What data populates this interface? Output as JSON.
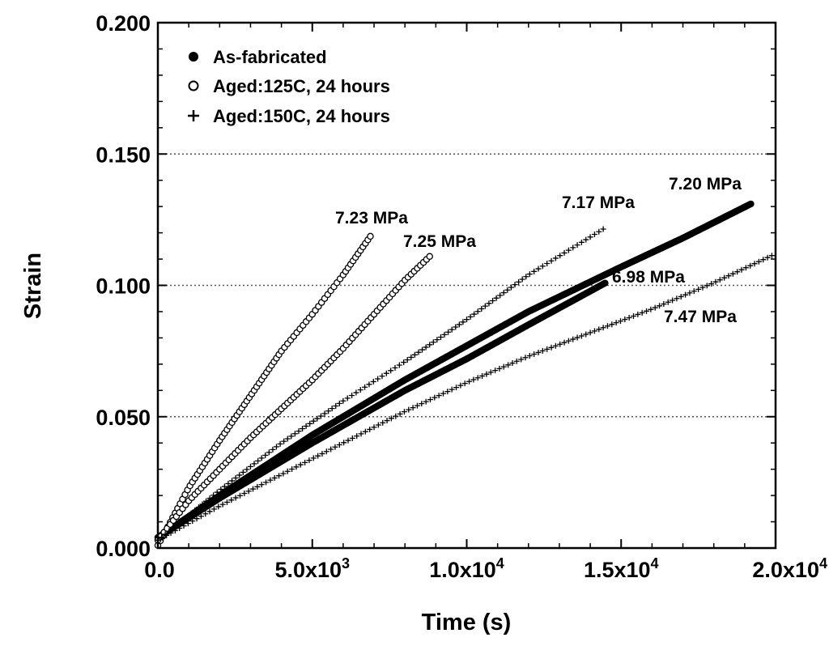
{
  "chart_data": {
    "type": "scatter",
    "xlabel": "Time  (s)",
    "ylabel": "Strain",
    "xlim": [
      0,
      20000
    ],
    "ylim": [
      0,
      0.2
    ],
    "x_ticks": [
      {
        "value": 0,
        "label": "0.0"
      },
      {
        "value": 5000,
        "label": "5.0x10",
        "exp": "3"
      },
      {
        "value": 10000,
        "label": "1.0x10",
        "exp": "4"
      },
      {
        "value": 15000,
        "label": "1.5x10",
        "exp": "4"
      },
      {
        "value": 20000,
        "label": "2.0x10",
        "exp": "4"
      }
    ],
    "y_ticks": [
      {
        "value": 0,
        "label": "0.000"
      },
      {
        "value": 0.05,
        "label": "0.050"
      },
      {
        "value": 0.1,
        "label": "0.100"
      },
      {
        "value": 0.15,
        "label": "0.150"
      },
      {
        "value": 0.2,
        "label": "0.200"
      }
    ],
    "gridlines_y": [
      0.05,
      0.1,
      0.15
    ],
    "legend_position": "top-left",
    "legend": [
      {
        "marker": "filled-circle",
        "label": "As-fabricated"
      },
      {
        "marker": "open-circle",
        "label": "Aged:125C, 24 hours"
      },
      {
        "marker": "plus",
        "label": "Aged:150C, 24 hours"
      }
    ],
    "series": [
      {
        "name": "As-fabricated",
        "stress_label": "7.20 MPa",
        "marker": "filled-circle",
        "t_end": 19200,
        "points": [
          [
            0,
            0.004
          ],
          [
            2000,
            0.02
          ],
          [
            5000,
            0.043
          ],
          [
            8000,
            0.064
          ],
          [
            10000,
            0.077
          ],
          [
            12000,
            0.09
          ],
          [
            15000,
            0.107
          ],
          [
            17000,
            0.118
          ],
          [
            19200,
            0.131
          ]
        ]
      },
      {
        "name": "As-fabricated",
        "stress_label": "6.98 MPa",
        "marker": "filled-circle",
        "t_end": 14500,
        "points": [
          [
            0,
            0.004
          ],
          [
            2000,
            0.019
          ],
          [
            5000,
            0.04
          ],
          [
            8000,
            0.06
          ],
          [
            10000,
            0.072
          ],
          [
            12000,
            0.085
          ],
          [
            14500,
            0.101
          ]
        ]
      },
      {
        "name": "Aged:125C, 24 hours",
        "stress_label": "7.23 MPa",
        "marker": "open-circle",
        "t_end": 6900,
        "points": [
          [
            0,
            0.001
          ],
          [
            1000,
            0.023
          ],
          [
            2000,
            0.041
          ],
          [
            3000,
            0.058
          ],
          [
            4000,
            0.075
          ],
          [
            5000,
            0.089
          ],
          [
            6000,
            0.104
          ],
          [
            6900,
            0.119
          ]
        ]
      },
      {
        "name": "Aged:125C, 24 hours",
        "stress_label": "7.25 MPa",
        "marker": "open-circle",
        "t_end": 8800,
        "points": [
          [
            0,
            0.003
          ],
          [
            1000,
            0.018
          ],
          [
            2000,
            0.03
          ],
          [
            3000,
            0.042
          ],
          [
            4000,
            0.053
          ],
          [
            5000,
            0.064
          ],
          [
            6000,
            0.076
          ],
          [
            7000,
            0.089
          ],
          [
            8000,
            0.102
          ],
          [
            8800,
            0.111
          ]
        ]
      },
      {
        "name": "Aged:150C, 24 hours",
        "stress_label": "7.17 MPa",
        "marker": "plus",
        "t_end": 14500,
        "points": [
          [
            0,
            0.003
          ],
          [
            2000,
            0.022
          ],
          [
            4000,
            0.04
          ],
          [
            6000,
            0.056
          ],
          [
            8000,
            0.071
          ],
          [
            10000,
            0.087
          ],
          [
            12000,
            0.104
          ],
          [
            14500,
            0.122
          ]
        ]
      },
      {
        "name": "Aged:150C, 24 hours",
        "stress_label": "7.47 MPa",
        "marker": "plus",
        "t_end": 20000,
        "points": [
          [
            0,
            0.003
          ],
          [
            2000,
            0.016
          ],
          [
            4000,
            0.028
          ],
          [
            6000,
            0.04
          ],
          [
            8000,
            0.052
          ],
          [
            10000,
            0.063
          ],
          [
            12000,
            0.073
          ],
          [
            14000,
            0.082
          ],
          [
            16000,
            0.091
          ],
          [
            18000,
            0.101
          ],
          [
            20000,
            0.112
          ]
        ]
      }
    ]
  }
}
